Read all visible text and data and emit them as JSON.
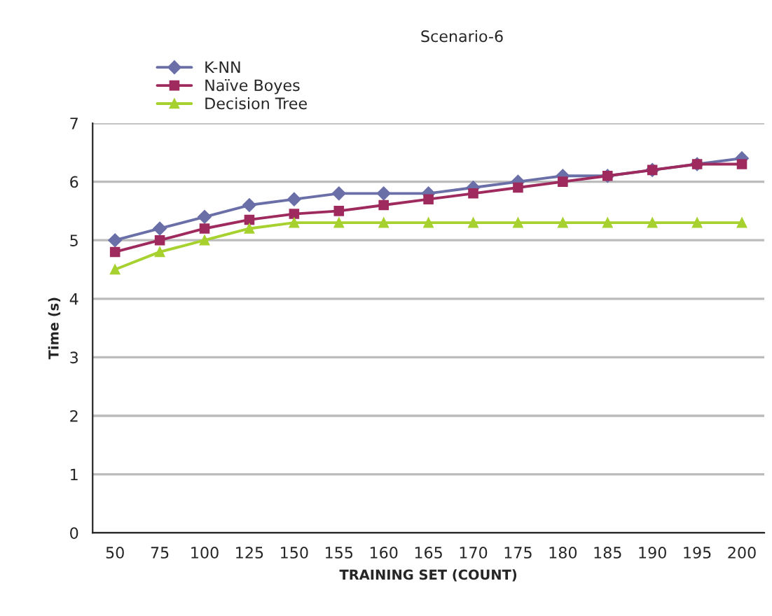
{
  "chart_data": {
    "type": "line",
    "title": "Scenario-6",
    "xlabel": "TRAINING SET (COUNT)",
    "ylabel": "Time (s)",
    "categories": [
      "50",
      "75",
      "100",
      "125",
      "150",
      "155",
      "160",
      "165",
      "170",
      "175",
      "180",
      "185",
      "190",
      "195",
      "200"
    ],
    "series": [
      {
        "name": "K-NN",
        "color": "#6b6fa8",
        "marker": "diamond",
        "values": [
          5.0,
          5.2,
          5.4,
          5.6,
          5.7,
          5.8,
          5.8,
          5.8,
          5.9,
          6.0,
          6.1,
          6.1,
          6.2,
          6.3,
          6.4
        ]
      },
      {
        "name": "Naïve Boyes",
        "color": "#9e2a5e",
        "marker": "square",
        "values": [
          4.8,
          5.0,
          5.2,
          5.35,
          5.45,
          5.5,
          5.6,
          5.7,
          5.8,
          5.9,
          6.0,
          6.1,
          6.2,
          6.3,
          6.3
        ]
      },
      {
        "name": "Decision Tree",
        "color": "#a6d12e",
        "marker": "triangle",
        "values": [
          4.5,
          4.8,
          5.0,
          5.2,
          5.3,
          5.3,
          5.3,
          5.3,
          5.3,
          5.3,
          5.3,
          5.3,
          5.3,
          5.3,
          5.3
        ]
      }
    ],
    "ylim": [
      0,
      7
    ],
    "yticks": [
      0,
      1,
      2,
      3,
      4,
      5,
      6,
      7
    ],
    "grid": "y",
    "legend": "top left"
  }
}
